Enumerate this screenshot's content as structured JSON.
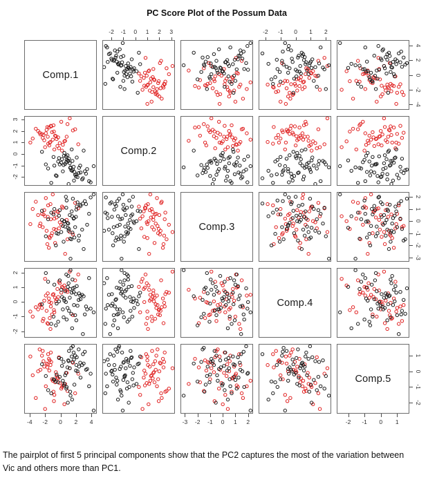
{
  "title": "PC Score Plot of the Possum Data",
  "caption": "The pairplot of first 5 principal components show that the PC2 captures the most of the variation between Vic and others more than PC1.",
  "colors": {
    "vic_points": "#e02020",
    "other_points": "#1a1a1a",
    "panel_border": "#6b6b6b",
    "tick_text": "#2e2e2e"
  },
  "chart_data": {
    "type": "scatter",
    "subtype": "pairs-matrix",
    "title": "PC Score Plot of the Possum Data",
    "grid": false,
    "legend": "none",
    "marker": "open-circle",
    "components": [
      {
        "label": "Comp.1",
        "min": -4.7,
        "max": 4.7,
        "ticks": [
          -4,
          -2,
          0,
          2,
          4
        ]
      },
      {
        "label": "Comp.2",
        "min": -2.75,
        "max": 3.3,
        "ticks": [
          -2,
          -1,
          0,
          1,
          2,
          3
        ]
      },
      {
        "label": "Comp.3",
        "min": -3.35,
        "max": 2.4,
        "ticks": [
          -3,
          -2,
          -1,
          0,
          1,
          2
        ]
      },
      {
        "label": "Comp.4",
        "min": -2.45,
        "max": 2.35,
        "ticks": [
          -2,
          -1,
          0,
          1,
          2
        ]
      },
      {
        "label": "Comp.5",
        "min": -2.7,
        "max": 1.75,
        "ticks": [
          -2,
          -1,
          0,
          1
        ]
      }
    ],
    "axis_layout": {
      "top_axis_columns": [
        2,
        4
      ],
      "bottom_axis_columns": [
        1,
        3,
        5
      ],
      "left_axis_rows": [
        2,
        4
      ],
      "right_axis_rows": [
        1,
        3,
        5
      ]
    },
    "series": [
      {
        "name": "Vic",
        "color": "#e02020",
        "points": [
          [
            -0.5,
            1.3,
            0.3,
            0.2,
            -0.3
          ],
          [
            -1.8,
            2.1,
            -0.8,
            -0.6,
            0.5
          ],
          [
            0.3,
            0.8,
            1.1,
            1.0,
            -0.9
          ],
          [
            -2.6,
            1.7,
            -0.2,
            -0.15,
            0.1
          ],
          [
            -0.9,
            2.5,
            0.7,
            0.55,
            -1.3
          ],
          [
            -1.4,
            1.0,
            -1.4,
            -1.1,
            0.7
          ],
          [
            0.8,
            1.5,
            0.1,
            0.8,
            -0.1
          ],
          [
            -3.2,
            2.2,
            1.6,
            -0.35,
            -1.7
          ],
          [
            -0.2,
            0.5,
            -0.6,
            1.4,
            0.9
          ],
          [
            -1.1,
            1.9,
            -1.0,
            -0.85,
            -0.5
          ],
          [
            -2.1,
            1.2,
            0.9,
            0.1,
            0.3
          ],
          [
            0.1,
            2.8,
            -0.3,
            0.65,
            -1.1
          ],
          [
            -1.6,
            0.9,
            1.3,
            -1.5,
            1.1
          ],
          [
            -0.7,
            1.6,
            -1.8,
            0.3,
            -0.7
          ],
          [
            -2.9,
            2.0,
            0.5,
            -0.5,
            0.0
          ],
          [
            0.5,
            1.1,
            0.0,
            1.15,
            -2.1
          ],
          [
            -1.2,
            2.4,
            -1.2,
            -0.05,
            0.6
          ],
          [
            -0.4,
            0.7,
            0.8,
            0.9,
            -0.4
          ],
          [
            -2.3,
            1.4,
            -0.5,
            -1.3,
            1.3
          ],
          [
            -1.9,
            1.8,
            1.9,
            0.45,
            -0.95
          ],
          [
            1.2,
            3.1,
            -0.9,
            2.1,
            0.2
          ],
          [
            -0.8,
            0.4,
            0.2,
            -0.7,
            -1.5
          ],
          [
            -1.5,
            2.3,
            -2.2,
            0.25,
            0.8
          ],
          [
            -3.6,
            1.35,
            1.0,
            -1.0,
            -0.25
          ],
          [
            -0.1,
            0.95,
            -0.1,
            1.3,
            -0.75
          ],
          [
            -2.4,
            1.75,
            0.6,
            -0.4,
            1.0
          ],
          [
            0.9,
            2.6,
            -1.5,
            0.7,
            -1.25
          ],
          [
            -1.3,
            1.05,
            1.4,
            -1.85,
            0.4
          ],
          [
            -0.6,
            1.55,
            -0.7,
            0.05,
            -0.05
          ],
          [
            -2.0,
            0.6,
            0.4,
            1.6,
            -2.4
          ],
          [
            1.6,
            2.05,
            -1.1,
            -0.9,
            0.55
          ],
          [
            -1.0,
            1.25,
            2.2,
            0.5,
            -0.6
          ],
          [
            -2.7,
            1.85,
            -0.4,
            -0.2,
            1.4
          ],
          [
            0.2,
            0.3,
            1.2,
            1.05,
            -1.0
          ],
          [
            -1.7,
            2.35,
            -1.9,
            -1.45,
            0.25
          ],
          [
            -0.3,
            1.45,
            0.75,
            0.35,
            -0.45
          ],
          [
            -3.9,
            1.0,
            -0.25,
            -0.65,
            0.95
          ],
          [
            1.9,
            2.15,
            1.5,
            1.5,
            -1.4
          ],
          [
            -1.45,
            0.75,
            -1.3,
            0.0,
            0.05
          ],
          [
            -2.2,
            1.65,
            0.55,
            -1.15,
            0.65
          ],
          [
            0.6,
            1.15,
            -2.7,
            0.85,
            -0.8
          ],
          [
            -1.25,
            2.45,
            0.15,
            -0.3,
            1.2
          ],
          [
            2.3,
            0.85,
            1.05,
            1.9,
            -0.15
          ],
          [
            -0.85,
            1.95,
            -0.65,
            -0.55,
            -1.9
          ],
          [
            -1.65,
            1.5,
            0.35,
            0.6,
            0.45
          ]
        ]
      },
      {
        "name": "others",
        "color": "#1a1a1a",
        "points": [
          [
            1.2,
            -0.8,
            0.5,
            0.3,
            0.2
          ],
          [
            0.3,
            -1.5,
            -0.4,
            -0.5,
            -0.6
          ],
          [
            2.1,
            -0.3,
            1.2,
            1.1,
            0.9
          ],
          [
            -0.5,
            -1.9,
            -1.0,
            -0.1,
            -0.2
          ],
          [
            1.7,
            -1.1,
            0.2,
            0.7,
            1.2
          ],
          [
            0.8,
            -0.5,
            1.7,
            -1.2,
            -1.0
          ],
          [
            2.8,
            -2.2,
            -0.7,
            0.5,
            0.4
          ],
          [
            -0.1,
            -0.9,
            0.9,
            1.5,
            -0.35
          ],
          [
            1.4,
            -1.4,
            -1.5,
            -0.8,
            1.5
          ],
          [
            0.5,
            0.1,
            0.0,
            0.1,
            -0.8
          ],
          [
            3.3,
            -1.7,
            1.4,
            -0.3,
            0.1
          ],
          [
            1.0,
            -0.6,
            -0.2,
            1.8,
            0.7
          ],
          [
            -1.2,
            -2.5,
            0.7,
            -1.5,
            -1.4
          ],
          [
            2.4,
            -1.2,
            -1.2,
            0.6,
            0.3
          ],
          [
            0.7,
            -0.2,
            2.0,
            0.0,
            -0.1
          ],
          [
            1.9,
            -1.8,
            -0.5,
            -0.9,
            1.0
          ],
          [
            -0.8,
            -1.0,
            1.0,
            1.2,
            -0.55
          ],
          [
            3.0,
            0.3,
            -2.3,
            0.4,
            0.5
          ],
          [
            1.5,
            -1.45,
            0.4,
            -1.8,
            -1.8
          ],
          [
            0.1,
            -0.75,
            -0.9,
            0.85,
            0.8
          ],
          [
            2.2,
            -2.0,
            1.55,
            -0.25,
            0.0
          ],
          [
            -1.6,
            -1.25,
            0.15,
            1.4,
            -1.2
          ],
          [
            1.1,
            -0.4,
            -0.65,
            -0.6,
            1.3
          ],
          [
            2.6,
            -1.6,
            1.25,
            0.2,
            -0.4
          ],
          [
            0.4,
            -0.95,
            -1.7,
            -1.05,
            0.6
          ],
          [
            3.7,
            -2.35,
            0.6,
            1.65,
            -0.95
          ],
          [
            0.9,
            -0.1,
            -0.15,
            -0.4,
            0.25
          ],
          [
            1.6,
            -1.35,
            1.85,
            0.95,
            1.6
          ],
          [
            -0.3,
            -0.65,
            -1.05,
            -1.35,
            -0.7
          ],
          [
            2.0,
            -1.95,
            0.35,
            0.55,
            0.05
          ],
          [
            1.3,
            -1.15,
            -3.1,
            2.2,
            -1.55
          ],
          [
            -2.4,
            0.2,
            0.85,
            -0.15,
            0.45
          ],
          [
            0.6,
            -0.85,
            -0.45,
            0.75,
            -0.25
          ],
          [
            2.9,
            -2.1,
            1.45,
            -2.2,
            1.1
          ],
          [
            1.8,
            -1.55,
            -1.35,
            1.0,
            -0.85
          ],
          [
            0.2,
            -0.45,
            0.1,
            0.35,
            0.35
          ],
          [
            4.3,
            -1.05,
            2.2,
            -0.7,
            -2.5
          ],
          [
            1.05,
            -2.6,
            -0.8,
            1.3,
            0.65
          ],
          [
            -0.9,
            -0.25,
            0.55,
            -1.0,
            -0.5
          ],
          [
            2.35,
            -1.65,
            -1.6,
            0.15,
            1.4
          ],
          [
            0.75,
            -0.7,
            1.1,
            1.9,
            -1.1
          ],
          [
            3.45,
            -1.3,
            -0.3,
            -0.5,
            0.15
          ],
          [
            1.45,
            0.4,
            0.8,
            0.65,
            0.95
          ],
          [
            -0.6,
            -1.85,
            -2.0,
            -1.6,
            -0.65
          ],
          [
            2.55,
            -1.0,
            1.35,
            0.45,
            0.55
          ],
          [
            0.95,
            -0.55,
            -0.55,
            1.05,
            -2.0
          ],
          [
            1.75,
            -2.3,
            0.25,
            -0.2,
            0.75
          ],
          [
            -1.9,
            -0.9,
            -1.25,
            2.0,
            -0.3
          ],
          [
            3.15,
            -1.5,
            1.65,
            -0.85,
            1.25
          ],
          [
            0.45,
            -0.15,
            -0.05,
            0.25,
            -0.9
          ],
          [
            2.05,
            -1.75,
            0.95,
            -1.25,
            0.4
          ],
          [
            1.25,
            -1.2,
            -1.45,
            0.9,
            -1.3
          ],
          [
            -0.2,
            -0.35,
            0.45,
            0.05,
            0.85
          ],
          [
            3.9,
            -2.45,
            1.95,
            -0.45,
            -0.15
          ],
          [
            1.55,
            -0.6,
            -0.95,
            1.55,
            0.6
          ]
        ]
      }
    ]
  }
}
